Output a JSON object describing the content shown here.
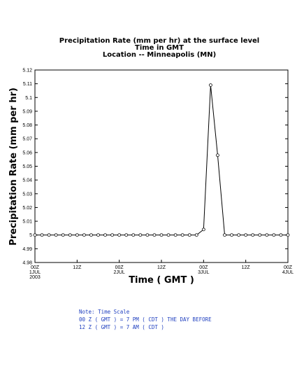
{
  "chart_data": {
    "type": "line",
    "title_lines": [
      "Precipitation Rate (mm per hr) at the surface level",
      "Time in GMT",
      "Location -- Minneapolis (MN)"
    ],
    "xlabel": "Time ( GMT )",
    "ylabel": "Precipitation Rate (mm per hr)",
    "ylim": [
      4.98,
      5.12
    ],
    "yticks": [
      4.98,
      4.99,
      5,
      5.01,
      5.02,
      5.03,
      5.04,
      5.05,
      5.06,
      5.07,
      5.08,
      5.09,
      5.1,
      5.11,
      5.12
    ],
    "ytick_labels": [
      "4.98",
      "4.99",
      "5",
      "5.01",
      "5.02",
      "5.03",
      "5.04",
      "5.05",
      "5.06",
      "5.07",
      "5.08",
      "5.09",
      "5.1",
      "5.11",
      "5.12"
    ],
    "x_unit": "hours",
    "xlim": [
      0,
      72
    ],
    "xticks": [
      {
        "x": 0,
        "lines": [
          "00Z",
          "1JUL",
          "2003"
        ]
      },
      {
        "x": 12,
        "lines": [
          "12Z"
        ]
      },
      {
        "x": 24,
        "lines": [
          "00Z",
          "2JUL"
        ]
      },
      {
        "x": 36,
        "lines": [
          "12Z"
        ]
      },
      {
        "x": 48,
        "lines": [
          "00Z",
          "3JUL"
        ]
      },
      {
        "x": 60,
        "lines": [
          "12Z"
        ]
      },
      {
        "x": 72,
        "lines": [
          "00Z",
          "4JUL"
        ]
      }
    ],
    "grid": false,
    "series": [
      {
        "x": [
          0,
          2,
          4,
          6,
          8,
          10,
          12,
          14,
          16,
          18,
          20,
          22,
          24,
          26,
          28,
          30,
          32,
          34,
          36,
          38,
          40,
          42,
          44,
          46,
          48,
          50,
          52,
          54,
          56,
          58,
          60,
          62,
          64,
          66,
          68,
          70,
          72
        ],
        "values": [
          5,
          5,
          5,
          5,
          5,
          5,
          5,
          5,
          5,
          5,
          5,
          5,
          5,
          5,
          5,
          5,
          5,
          5,
          5,
          5,
          5,
          5,
          5,
          5,
          5.004,
          5.109,
          5.058,
          5,
          5,
          5,
          5,
          5,
          5,
          5,
          5,
          5,
          5
        ]
      }
    ]
  },
  "note": {
    "lines": [
      "Note: Time Scale",
      "00 Z ( GMT ) = 7 PM ( CDT ) THE DAY BEFORE",
      "12 Z ( GMT ) = 7 AM ( CDT )"
    ]
  }
}
